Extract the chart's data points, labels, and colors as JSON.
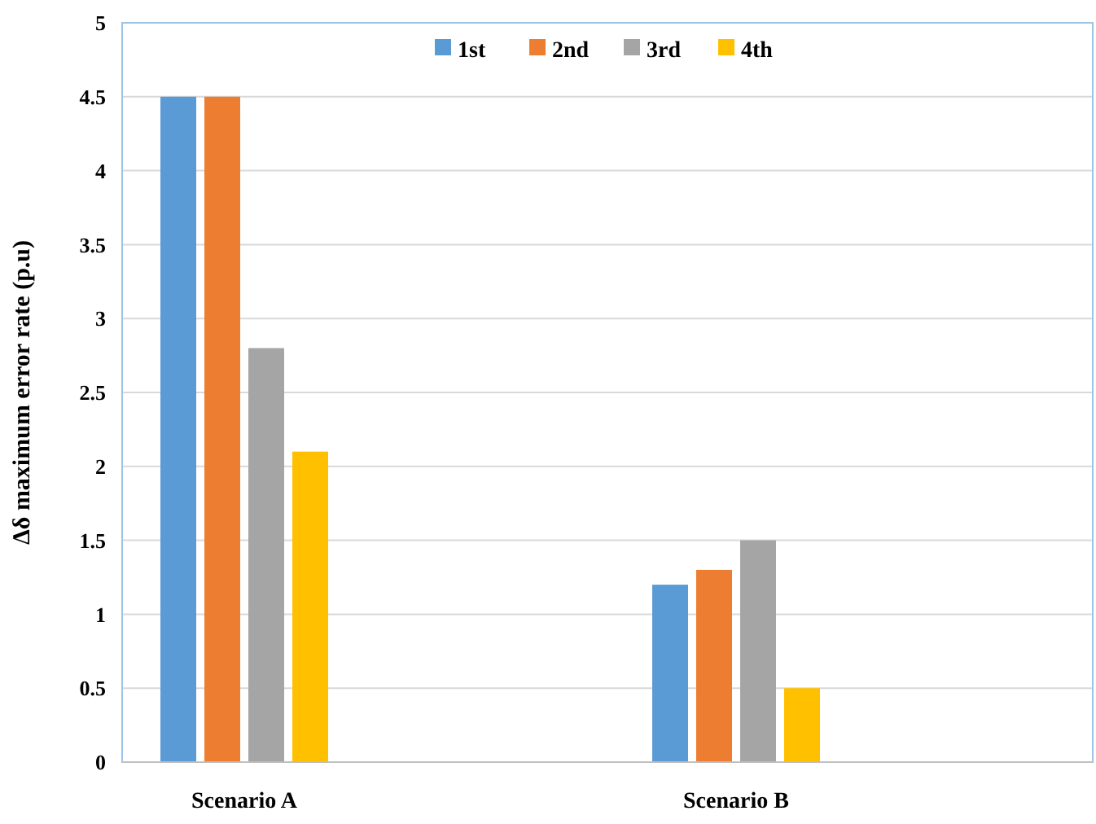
{
  "chart_data": {
    "type": "bar",
    "ylabel": "Δδ maximum error rate (p.u)",
    "categories": [
      "Scenario A",
      "Scenario B"
    ],
    "series": [
      {
        "name": "1st",
        "color": "#5b9bd5",
        "values": [
          4.5,
          1.2
        ]
      },
      {
        "name": "2nd",
        "color": "#ed7d31",
        "values": [
          4.5,
          1.3
        ]
      },
      {
        "name": "3rd",
        "color": "#a5a5a5",
        "values": [
          2.8,
          1.5
        ]
      },
      {
        "name": "4th",
        "color": "#ffc000",
        "values": [
          2.1,
          0.5
        ]
      }
    ],
    "ylim": [
      0,
      5
    ],
    "yticks": [
      0,
      0.5,
      1,
      1.5,
      2,
      2.5,
      3,
      3.5,
      4,
      4.5,
      5
    ],
    "grid": "y",
    "legend": "top"
  }
}
